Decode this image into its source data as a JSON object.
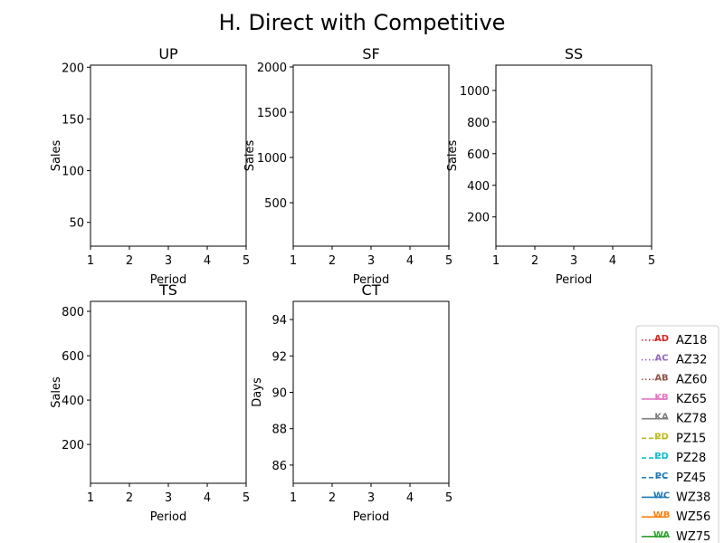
{
  "figure": {
    "title": "H. Direct with Competitive"
  },
  "chart_data": [
    {
      "type": "line",
      "title": "UP",
      "xlabel": "Period",
      "ylabel": "Sales",
      "xlim": [
        1,
        5
      ],
      "ylim": [
        27,
        202
      ],
      "xticks": [
        1,
        2,
        3,
        4,
        5
      ],
      "yticks": [
        50,
        100,
        150,
        200
      ],
      "grid": false,
      "series": []
    },
    {
      "type": "line",
      "title": "SF",
      "xlabel": "Period",
      "ylabel": "Sales",
      "xlim": [
        1,
        5
      ],
      "ylim": [
        20,
        2020
      ],
      "xticks": [
        1,
        2,
        3,
        4,
        5
      ],
      "yticks": [
        500,
        1000,
        1500,
        2000
      ],
      "grid": false,
      "series": []
    },
    {
      "type": "line",
      "title": "SS",
      "xlabel": "Period",
      "ylabel": "Sales",
      "xlim": [
        1,
        5
      ],
      "ylim": [
        15,
        1160
      ],
      "xticks": [
        1,
        2,
        3,
        4,
        5
      ],
      "yticks": [
        200,
        400,
        600,
        800,
        1000
      ],
      "grid": false,
      "series": []
    },
    {
      "type": "line",
      "title": "TS",
      "xlabel": "Period",
      "ylabel": "Sales",
      "xlim": [
        1,
        5
      ],
      "ylim": [
        25,
        845
      ],
      "xticks": [
        1,
        2,
        3,
        4,
        5
      ],
      "yticks": [
        200,
        400,
        600,
        800
      ],
      "grid": false,
      "series": []
    },
    {
      "type": "line",
      "title": "CT",
      "xlabel": "Period",
      "ylabel": "Days",
      "xlim": [
        1,
        5
      ],
      "ylim": [
        85,
        95
      ],
      "xticks": [
        1,
        2,
        3,
        4,
        5
      ],
      "yticks": [
        86,
        88,
        90,
        92,
        94
      ],
      "grid": false,
      "series": []
    }
  ],
  "legend": {
    "placement": "bottom-right",
    "entries": [
      {
        "label": "AZ18",
        "marker": "AD",
        "color": "#d62728",
        "linestyle": "dotted"
      },
      {
        "label": "AZ32",
        "marker": "AC",
        "color": "#9467bd",
        "linestyle": "dotted"
      },
      {
        "label": "AZ60",
        "marker": "AB",
        "color": "#8c564b",
        "linestyle": "dotted"
      },
      {
        "label": "KZ65",
        "marker": "KB",
        "color": "#e377c2",
        "linestyle": "solid"
      },
      {
        "label": "KZ78",
        "marker": "KA",
        "color": "#7f7f7f",
        "linestyle": "solid"
      },
      {
        "label": "PZ15",
        "marker": "PD",
        "color": "#bcbd22",
        "linestyle": "dashed"
      },
      {
        "label": "PZ28",
        "marker": "PD",
        "color": "#17becf",
        "linestyle": "dashed"
      },
      {
        "label": "PZ45",
        "marker": "PC",
        "color": "#1f77b4",
        "linestyle": "dashed"
      },
      {
        "label": "WZ38",
        "marker": "WC",
        "color": "#1f77b4",
        "linestyle": "solid"
      },
      {
        "label": "WZ56",
        "marker": "WB",
        "color": "#ff7f0e",
        "linestyle": "solid"
      },
      {
        "label": "WZ75",
        "marker": "WA",
        "color": "#2ca02c",
        "linestyle": "solid"
      }
    ]
  }
}
